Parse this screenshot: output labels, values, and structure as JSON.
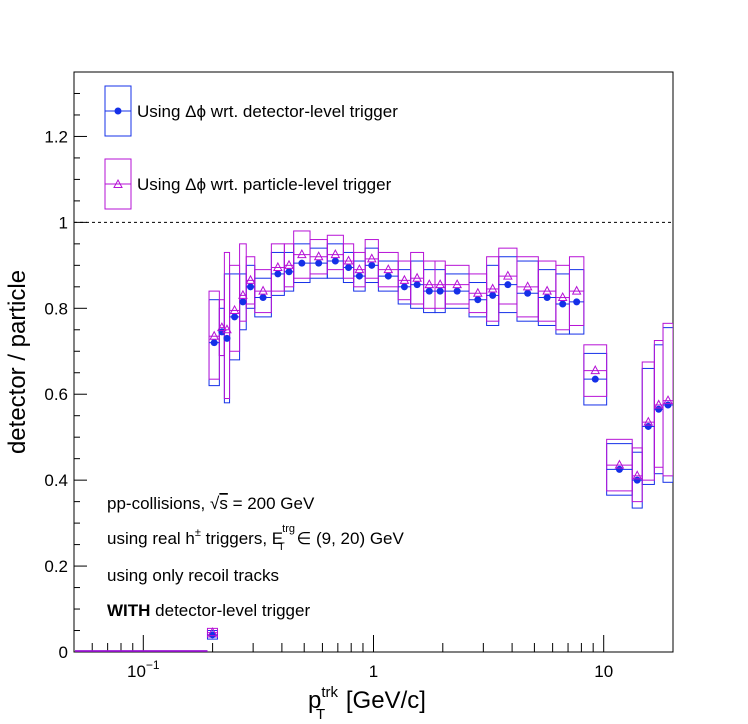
{
  "chart_data": {
    "type": "scatter",
    "x_scale": "log",
    "xlim": [
      0.05,
      20
    ],
    "ylim": [
      0,
      1.35
    ],
    "xlabel": {
      "base": "p",
      "sup": "trk",
      "sub": "T",
      "unit": " [GeV/c]"
    },
    "ylabel": "detector / particle",
    "x_ticks": [
      {
        "value": 0.1,
        "base": "10",
        "exp": "−1"
      },
      {
        "value": 1,
        "base": "1",
        "exp": ""
      },
      {
        "value": 10,
        "base": "10",
        "exp": ""
      }
    ],
    "y_ticks": [
      {
        "value": 0,
        "label": "0"
      },
      {
        "value": 0.2,
        "label": "0.2"
      },
      {
        "value": 0.4,
        "label": "0.4"
      },
      {
        "value": 0.6,
        "label": "0.6"
      },
      {
        "value": 0.8,
        "label": "0.8"
      },
      {
        "value": 1,
        "label": "1"
      },
      {
        "value": 1.2,
        "label": "1.2"
      }
    ],
    "reference_line": {
      "y": 1,
      "style": "dashed"
    },
    "legend_position": "top-left",
    "series": [
      {
        "name": "Using Δϕ wrt. detector-level trigger",
        "color": "#1530e8",
        "marker": "filled-circle",
        "points": [
          {
            "x0": 0.19,
            "x1": 0.21,
            "y": 0.04,
            "lo": 0.03,
            "hi": 0.05
          },
          {
            "x0": 0.193,
            "x1": 0.214,
            "y": 0.72,
            "lo": 0.62,
            "hi": 0.82
          },
          {
            "x0": 0.214,
            "x1": 0.225,
            "y": 0.745,
            "lo": 0.69,
            "hi": 0.8
          },
          {
            "x0": 0.225,
            "x1": 0.237,
            "y": 0.73,
            "lo": 0.58,
            "hi": 0.88
          },
          {
            "x0": 0.237,
            "x1": 0.262,
            "y": 0.78,
            "lo": 0.68,
            "hi": 0.88
          },
          {
            "x0": 0.262,
            "x1": 0.28,
            "y": 0.815,
            "lo": 0.75,
            "hi": 0.88
          },
          {
            "x0": 0.28,
            "x1": 0.305,
            "y": 0.85,
            "lo": 0.8,
            "hi": 0.9
          },
          {
            "x0": 0.305,
            "x1": 0.36,
            "y": 0.825,
            "lo": 0.78,
            "hi": 0.87
          },
          {
            "x0": 0.36,
            "x1": 0.41,
            "y": 0.88,
            "lo": 0.83,
            "hi": 0.93
          },
          {
            "x0": 0.41,
            "x1": 0.45,
            "y": 0.885,
            "lo": 0.84,
            "hi": 0.93
          },
          {
            "x0": 0.45,
            "x1": 0.53,
            "y": 0.905,
            "lo": 0.86,
            "hi": 0.95
          },
          {
            "x0": 0.53,
            "x1": 0.63,
            "y": 0.905,
            "lo": 0.87,
            "hi": 0.94
          },
          {
            "x0": 0.63,
            "x1": 0.74,
            "y": 0.91,
            "lo": 0.87,
            "hi": 0.95
          },
          {
            "x0": 0.74,
            "x1": 0.82,
            "y": 0.895,
            "lo": 0.86,
            "hi": 0.93
          },
          {
            "x0": 0.82,
            "x1": 0.92,
            "y": 0.875,
            "lo": 0.84,
            "hi": 0.91
          },
          {
            "x0": 0.92,
            "x1": 1.05,
            "y": 0.9,
            "lo": 0.86,
            "hi": 0.94
          },
          {
            "x0": 1.05,
            "x1": 1.28,
            "y": 0.875,
            "lo": 0.84,
            "hi": 0.91
          },
          {
            "x0": 1.28,
            "x1": 1.45,
            "y": 0.85,
            "lo": 0.81,
            "hi": 0.89
          },
          {
            "x0": 1.45,
            "x1": 1.65,
            "y": 0.855,
            "lo": 0.8,
            "hi": 0.91
          },
          {
            "x0": 1.65,
            "x1": 1.85,
            "y": 0.84,
            "lo": 0.79,
            "hi": 0.89
          },
          {
            "x0": 1.85,
            "x1": 2.05,
            "y": 0.84,
            "lo": 0.79,
            "hi": 0.89
          },
          {
            "x0": 2.05,
            "x1": 2.6,
            "y": 0.84,
            "lo": 0.8,
            "hi": 0.88
          },
          {
            "x0": 2.6,
            "x1": 3.1,
            "y": 0.82,
            "lo": 0.78,
            "hi": 0.86
          },
          {
            "x0": 3.1,
            "x1": 3.5,
            "y": 0.83,
            "lo": 0.76,
            "hi": 0.9
          },
          {
            "x0": 3.5,
            "x1": 4.2,
            "y": 0.855,
            "lo": 0.79,
            "hi": 0.92
          },
          {
            "x0": 4.2,
            "x1": 5.2,
            "y": 0.835,
            "lo": 0.77,
            "hi": 0.91
          },
          {
            "x0": 5.2,
            "x1": 6.2,
            "y": 0.825,
            "lo": 0.76,
            "hi": 0.89
          },
          {
            "x0": 6.2,
            "x1": 7.1,
            "y": 0.81,
            "lo": 0.74,
            "hi": 0.88
          },
          {
            "x0": 7.1,
            "x1": 8.2,
            "y": 0.815,
            "lo": 0.74,
            "hi": 0.89
          },
          {
            "x0": 8.2,
            "x1": 10.3,
            "y": 0.635,
            "lo": 0.575,
            "hi": 0.695
          },
          {
            "x0": 10.3,
            "x1": 13.3,
            "y": 0.425,
            "lo": 0.365,
            "hi": 0.485
          },
          {
            "x0": 13.3,
            "x1": 14.7,
            "y": 0.4,
            "lo": 0.335,
            "hi": 0.465
          },
          {
            "x0": 14.7,
            "x1": 16.6,
            "y": 0.525,
            "lo": 0.39,
            "hi": 0.66
          },
          {
            "x0": 16.6,
            "x1": 18.1,
            "y": 0.565,
            "lo": 0.415,
            "hi": 0.715
          },
          {
            "x0": 18.1,
            "x1": 20,
            "y": 0.575,
            "lo": 0.395,
            "hi": 0.755
          }
        ]
      },
      {
        "name": "Using Δϕ wrt. particle-level trigger",
        "color": "#b612d6",
        "marker": "open-triangle",
        "points": [
          {
            "x0": 0.19,
            "x1": 0.21,
            "y": 0.045,
            "lo": 0.035,
            "hi": 0.055
          },
          {
            "x0": 0.193,
            "x1": 0.214,
            "y": 0.735,
            "lo": 0.635,
            "hi": 0.84
          },
          {
            "x0": 0.214,
            "x1": 0.225,
            "y": 0.755,
            "lo": 0.69,
            "hi": 0.82
          },
          {
            "x0": 0.225,
            "x1": 0.237,
            "y": 0.75,
            "lo": 0.59,
            "hi": 0.93
          },
          {
            "x0": 0.237,
            "x1": 0.262,
            "y": 0.795,
            "lo": 0.7,
            "hi": 0.9
          },
          {
            "x0": 0.262,
            "x1": 0.28,
            "y": 0.83,
            "lo": 0.77,
            "hi": 0.95
          },
          {
            "x0": 0.28,
            "x1": 0.305,
            "y": 0.865,
            "lo": 0.81,
            "hi": 0.92
          },
          {
            "x0": 0.305,
            "x1": 0.36,
            "y": 0.84,
            "lo": 0.79,
            "hi": 0.89
          },
          {
            "x0": 0.36,
            "x1": 0.41,
            "y": 0.895,
            "lo": 0.84,
            "hi": 0.95
          },
          {
            "x0": 0.41,
            "x1": 0.45,
            "y": 0.9,
            "lo": 0.85,
            "hi": 0.95
          },
          {
            "x0": 0.45,
            "x1": 0.53,
            "y": 0.925,
            "lo": 0.87,
            "hi": 0.98
          },
          {
            "x0": 0.53,
            "x1": 0.63,
            "y": 0.92,
            "lo": 0.88,
            "hi": 0.96
          },
          {
            "x0": 0.63,
            "x1": 0.74,
            "y": 0.925,
            "lo": 0.89,
            "hi": 0.97
          },
          {
            "x0": 0.74,
            "x1": 0.82,
            "y": 0.91,
            "lo": 0.87,
            "hi": 0.95
          },
          {
            "x0": 0.82,
            "x1": 0.92,
            "y": 0.89,
            "lo": 0.85,
            "hi": 0.93
          },
          {
            "x0": 0.92,
            "x1": 1.05,
            "y": 0.915,
            "lo": 0.87,
            "hi": 0.96
          },
          {
            "x0": 1.05,
            "x1": 1.28,
            "y": 0.89,
            "lo": 0.85,
            "hi": 0.93
          },
          {
            "x0": 1.28,
            "x1": 1.45,
            "y": 0.865,
            "lo": 0.82,
            "hi": 0.91
          },
          {
            "x0": 1.45,
            "x1": 1.65,
            "y": 0.87,
            "lo": 0.81,
            "hi": 0.93
          },
          {
            "x0": 1.65,
            "x1": 1.85,
            "y": 0.855,
            "lo": 0.8,
            "hi": 0.91
          },
          {
            "x0": 1.85,
            "x1": 2.05,
            "y": 0.855,
            "lo": 0.8,
            "hi": 0.91
          },
          {
            "x0": 2.05,
            "x1": 2.6,
            "y": 0.855,
            "lo": 0.81,
            "hi": 0.9
          },
          {
            "x0": 2.6,
            "x1": 3.1,
            "y": 0.835,
            "lo": 0.79,
            "hi": 0.88
          },
          {
            "x0": 3.1,
            "x1": 3.5,
            "y": 0.845,
            "lo": 0.77,
            "hi": 0.92
          },
          {
            "x0": 3.5,
            "x1": 4.2,
            "y": 0.875,
            "lo": 0.81,
            "hi": 0.94
          },
          {
            "x0": 4.2,
            "x1": 5.2,
            "y": 0.85,
            "lo": 0.78,
            "hi": 0.92
          },
          {
            "x0": 5.2,
            "x1": 6.2,
            "y": 0.84,
            "lo": 0.77,
            "hi": 0.91
          },
          {
            "x0": 6.2,
            "x1": 7.1,
            "y": 0.825,
            "lo": 0.75,
            "hi": 0.9
          },
          {
            "x0": 7.1,
            "x1": 8.2,
            "y": 0.84,
            "lo": 0.76,
            "hi": 0.92
          },
          {
            "x0": 8.2,
            "x1": 10.3,
            "y": 0.655,
            "lo": 0.595,
            "hi": 0.715
          },
          {
            "x0": 10.3,
            "x1": 13.3,
            "y": 0.435,
            "lo": 0.375,
            "hi": 0.495
          },
          {
            "x0": 13.3,
            "x1": 14.7,
            "y": 0.41,
            "lo": 0.35,
            "hi": 0.475
          },
          {
            "x0": 14.7,
            "x1": 16.6,
            "y": 0.535,
            "lo": 0.4,
            "hi": 0.675
          },
          {
            "x0": 16.6,
            "x1": 18.1,
            "y": 0.575,
            "lo": 0.43,
            "hi": 0.725
          },
          {
            "x0": 18.1,
            "x1": 20,
            "y": 0.585,
            "lo": 0.41,
            "hi": 0.765
          }
        ]
      }
    ],
    "annotations": {
      "line1_a": "pp-collisions, ",
      "line1_sqrt": "√",
      "line1_s": "s",
      "line1_b": " = 200 GeV",
      "line2_a": "using real h",
      "line2_pm": "±",
      "line2_b": " triggers, E",
      "line2_sup": "trg",
      "line2_sub": "T",
      "line2_c": " ∈ (9, 20) GeV",
      "line3": "using only recoil tracks",
      "line4_bold": "WITH",
      "line4_rest": " detector-level trigger"
    }
  }
}
